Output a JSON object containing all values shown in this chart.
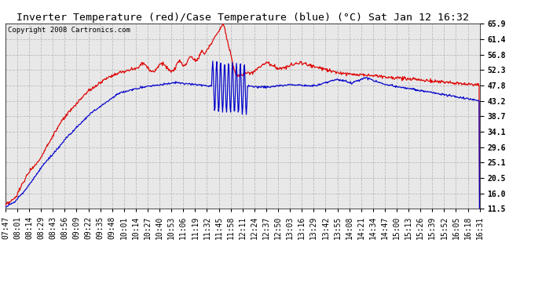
{
  "title": "Inverter Temperature (red)/Case Temperature (blue) (°C) Sat Jan 12 16:32",
  "copyright": "Copyright 2008 Cartronics.com",
  "y_ticks": [
    11.5,
    16.0,
    20.5,
    25.1,
    29.6,
    34.1,
    38.7,
    43.2,
    47.8,
    52.3,
    56.8,
    61.4,
    65.9
  ],
  "x_labels": [
    "07:47",
    "08:01",
    "08:14",
    "08:29",
    "08:43",
    "08:56",
    "09:09",
    "09:22",
    "09:35",
    "09:48",
    "10:01",
    "10:14",
    "10:27",
    "10:40",
    "10:53",
    "11:06",
    "11:19",
    "11:32",
    "11:45",
    "11:58",
    "12:11",
    "12:24",
    "12:37",
    "12:50",
    "13:03",
    "13:16",
    "13:29",
    "13:42",
    "13:55",
    "14:08",
    "14:21",
    "14:34",
    "14:47",
    "15:00",
    "15:13",
    "15:26",
    "15:39",
    "15:52",
    "16:05",
    "16:18",
    "16:31"
  ],
  "ylim": [
    11.5,
    65.9
  ],
  "bg_color": "#ffffff",
  "plot_bg_color": "#e8e8e8",
  "grid_color": "#bbbbbb",
  "red_color": "#dd0000",
  "blue_color": "#0000cc",
  "title_fontsize": 9.5,
  "copyright_fontsize": 6.5,
  "tick_fontsize": 7
}
